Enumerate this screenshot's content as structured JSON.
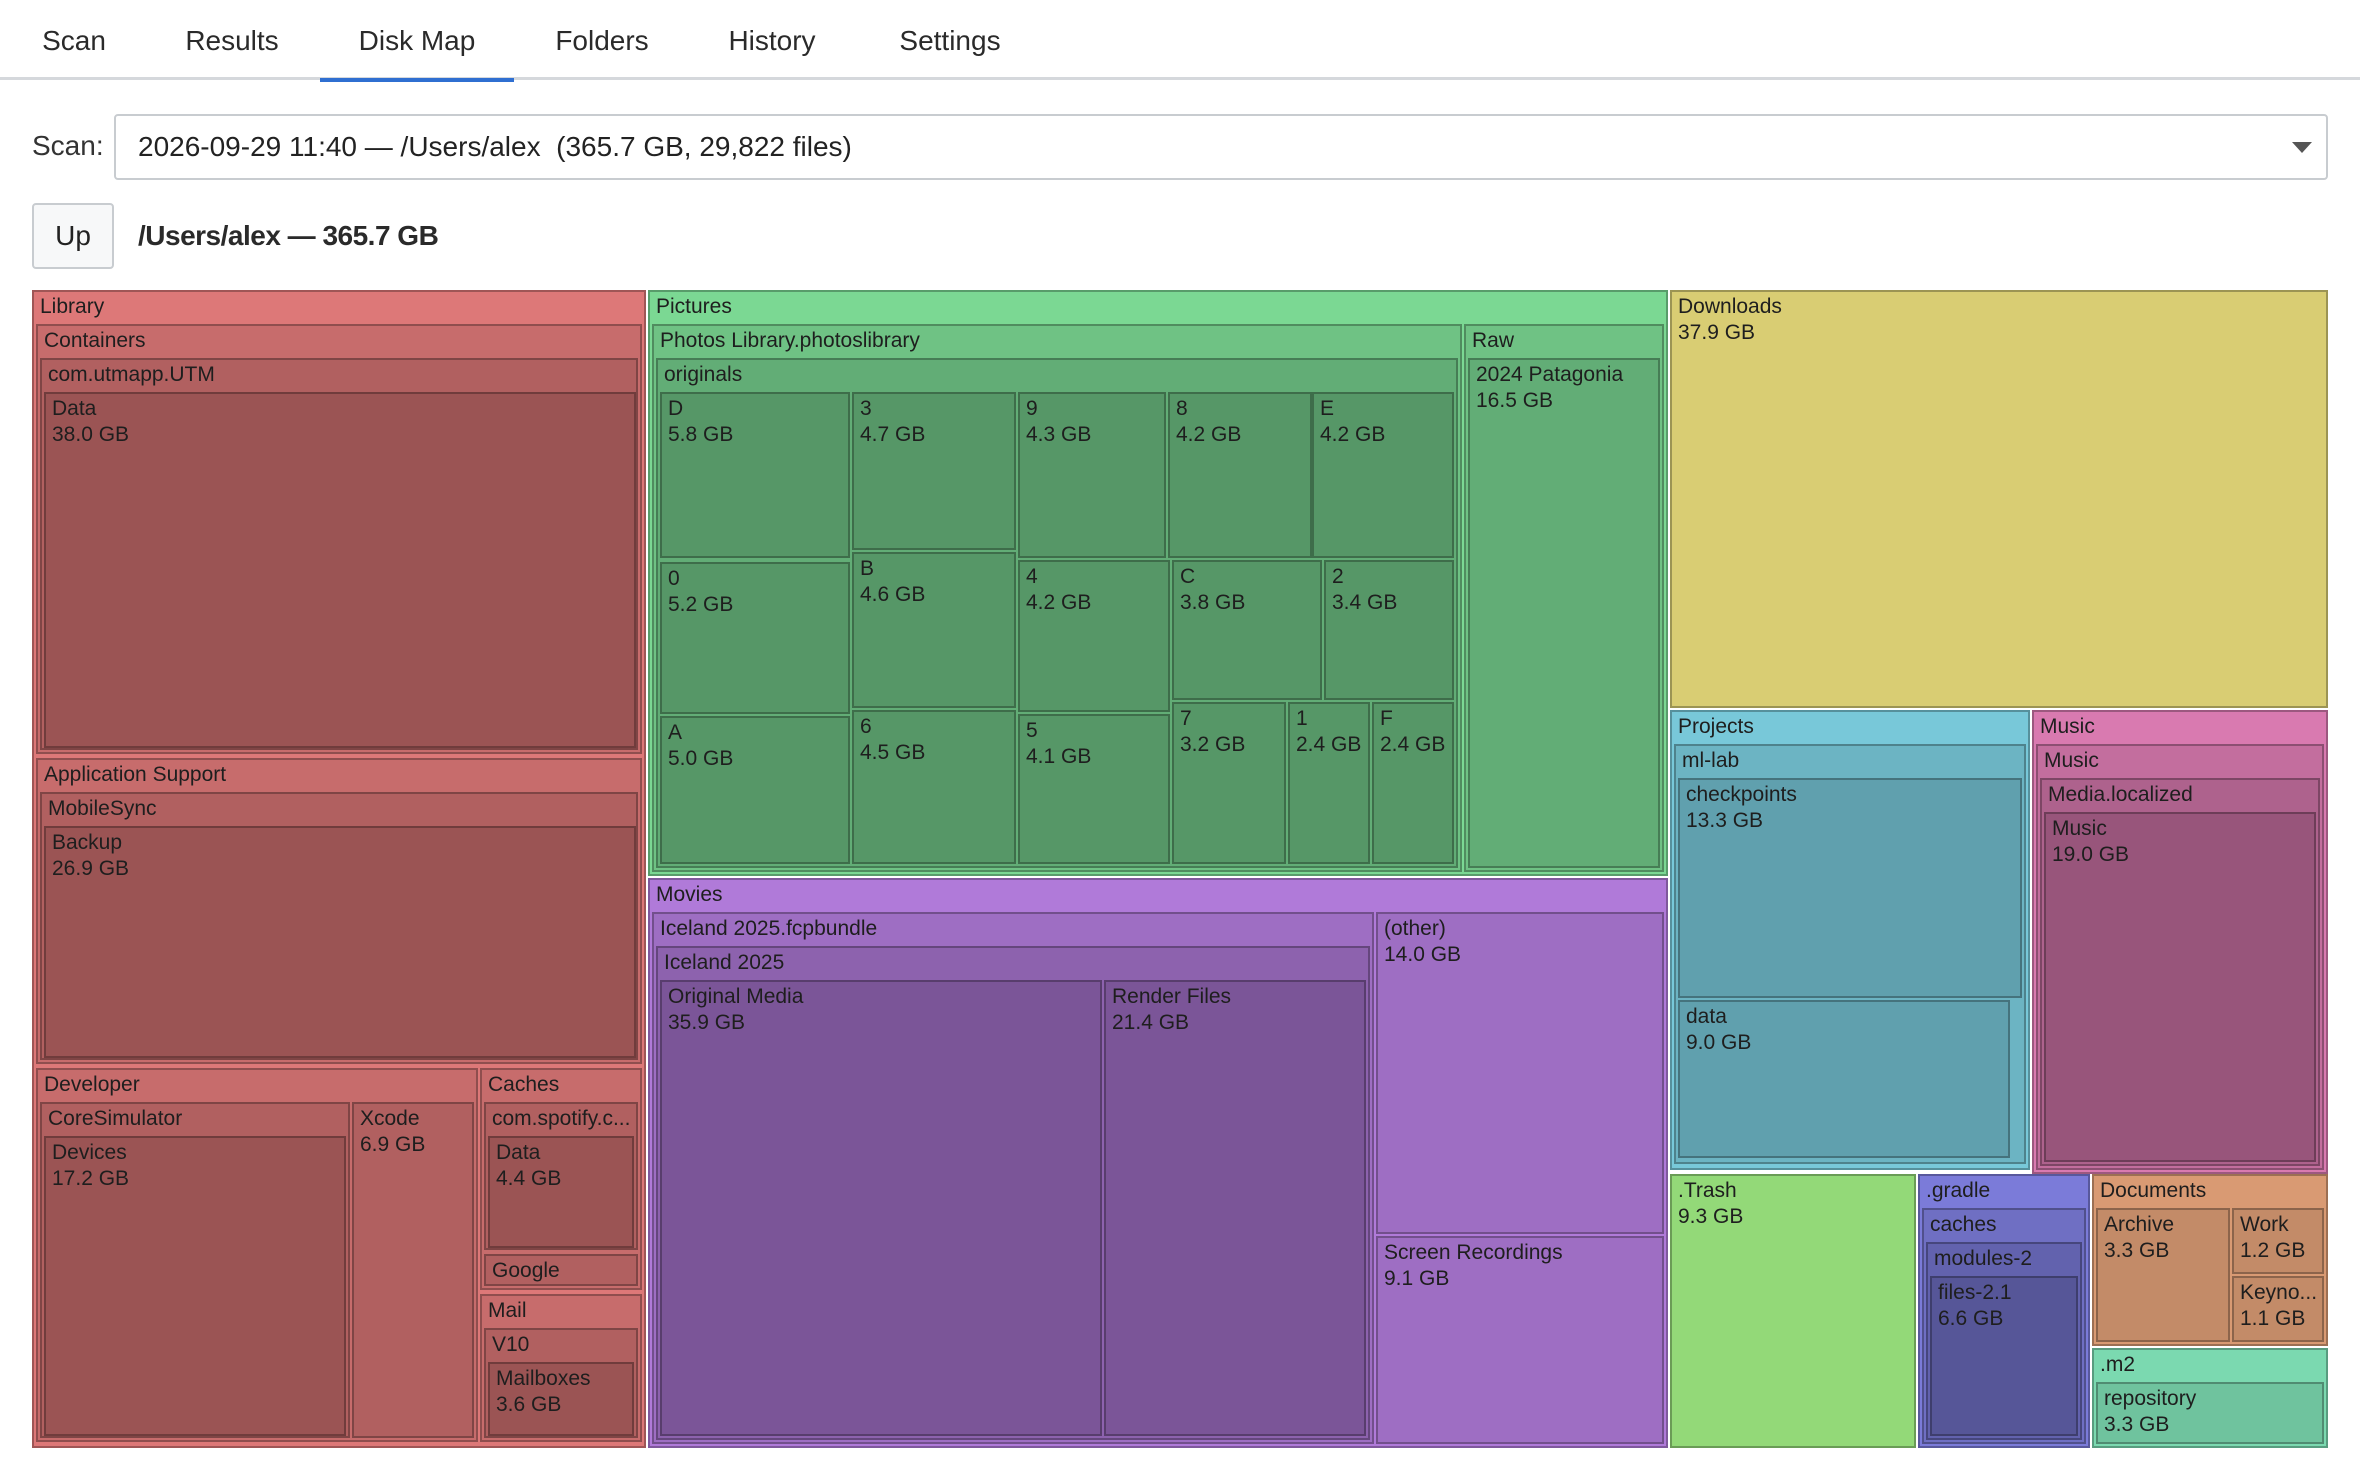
{
  "tabs": {
    "scan": "Scan",
    "results": "Results",
    "disk_map": "Disk Map",
    "folders": "Folders",
    "history": "History",
    "settings": "Settings",
    "active": "Disk Map"
  },
  "scan": {
    "label": "Scan:",
    "selected": "2026-09-29 11:40 — /Users/alex  (365.7 GB, 29,822 files)"
  },
  "nav": {
    "up_label": "Up",
    "path_title": "/Users/alex — 365.7 GB"
  },
  "colors": {
    "library": "#dd7878",
    "pictures": "#7bd893",
    "downloads": "#d9cd73",
    "movies": "#b07ad9",
    "projects": "#78c8d9",
    "music": "#d97ab0",
    "trash": "#93d978",
    "gradle": "#7b7bd9",
    "documents": "#d99a73",
    "m2": "#7bd9b0",
    "accent": "#2f6fd1"
  },
  "treemap": {
    "library": {
      "name": "Library"
    },
    "containers": {
      "name": "Containers"
    },
    "utm": {
      "name": "com.utmapp.UTM"
    },
    "utm_data": {
      "name": "Data",
      "size": "38.0 GB"
    },
    "app_support": {
      "name": "Application Support"
    },
    "mobilesync": {
      "name": "MobileSync"
    },
    "backup": {
      "name": "Backup",
      "size": "26.9 GB"
    },
    "developer": {
      "name": "Developer"
    },
    "coresim": {
      "name": "CoreSimulator"
    },
    "devices": {
      "name": "Devices",
      "size": "17.2 GB"
    },
    "xcode": {
      "name": "Xcode",
      "size": "6.9 GB"
    },
    "caches": {
      "name": "Caches"
    },
    "spotify": {
      "name": "com.spotify.c..."
    },
    "spotify_data": {
      "name": "Data",
      "size": "4.4 GB"
    },
    "google": {
      "name": "Google"
    },
    "mail": {
      "name": "Mail"
    },
    "v10": {
      "name": "V10"
    },
    "mailboxes": {
      "name": "Mailboxes",
      "size": "3.6 GB"
    },
    "pictures": {
      "name": "Pictures"
    },
    "photoslib": {
      "name": "Photos Library.photoslibrary"
    },
    "originals": {
      "name": "originals"
    },
    "o_D": {
      "name": "D",
      "size": "5.8 GB"
    },
    "o_3": {
      "name": "3",
      "size": "4.7 GB"
    },
    "o_9": {
      "name": "9",
      "size": "4.3 GB"
    },
    "o_8": {
      "name": "8",
      "size": "4.2 GB"
    },
    "o_E": {
      "name": "E",
      "size": "4.2 GB"
    },
    "o_0": {
      "name": "0",
      "size": "5.2 GB"
    },
    "o_B": {
      "name": "B",
      "size": "4.6 GB"
    },
    "o_4": {
      "name": "4",
      "size": "4.2 GB"
    },
    "o_C": {
      "name": "C",
      "size": "3.8 GB"
    },
    "o_2": {
      "name": "2",
      "size": "3.4 GB"
    },
    "o_A": {
      "name": "A",
      "size": "5.0 GB"
    },
    "o_6": {
      "name": "6",
      "size": "4.5 GB"
    },
    "o_5": {
      "name": "5",
      "size": "4.1 GB"
    },
    "o_7": {
      "name": "7",
      "size": "3.2 GB"
    },
    "o_1": {
      "name": "1",
      "size": "2.4 GB"
    },
    "o_F": {
      "name": "F",
      "size": "2.4 GB"
    },
    "raw": {
      "name": "Raw"
    },
    "patagonia": {
      "name": "2024 Patagonia",
      "size": "16.5 GB"
    },
    "movies": {
      "name": "Movies"
    },
    "iceland_bundle": {
      "name": "Iceland 2025.fcpbundle"
    },
    "iceland": {
      "name": "Iceland 2025"
    },
    "original_media": {
      "name": "Original Media",
      "size": "35.9 GB"
    },
    "render_files": {
      "name": "Render Files",
      "size": "21.4 GB"
    },
    "other": {
      "name": "(other)",
      "size": "14.0 GB"
    },
    "screen_rec": {
      "name": "Screen Recordings",
      "size": "9.1 GB"
    },
    "downloads": {
      "name": "Downloads",
      "size": "37.9 GB"
    },
    "projects": {
      "name": "Projects"
    },
    "mllab": {
      "name": "ml-lab"
    },
    "checkpoints": {
      "name": "checkpoints",
      "size": "13.3 GB"
    },
    "mldata": {
      "name": "data",
      "size": "9.0 GB"
    },
    "music_root": {
      "name": "Music"
    },
    "music_sub": {
      "name": "Music"
    },
    "media_localized": {
      "name": "Media.localized"
    },
    "music_leaf": {
      "name": "Music",
      "size": "19.0 GB"
    },
    "trash": {
      "name": ".Trash",
      "size": "9.3 GB"
    },
    "gradle": {
      "name": ".gradle"
    },
    "gradle_caches": {
      "name": "caches"
    },
    "modules2": {
      "name": "modules-2"
    },
    "files21": {
      "name": "files-2.1",
      "size": "6.6 GB"
    },
    "documents": {
      "name": "Documents"
    },
    "archive": {
      "name": "Archive",
      "size": "3.3 GB"
    },
    "work": {
      "name": "Work",
      "size": "1.2 GB"
    },
    "keynote": {
      "name": "Keyno...",
      "size": "1.1 GB"
    },
    "m2": {
      "name": ".m2"
    },
    "repository": {
      "name": "repository",
      "size": "3.3 GB"
    }
  }
}
